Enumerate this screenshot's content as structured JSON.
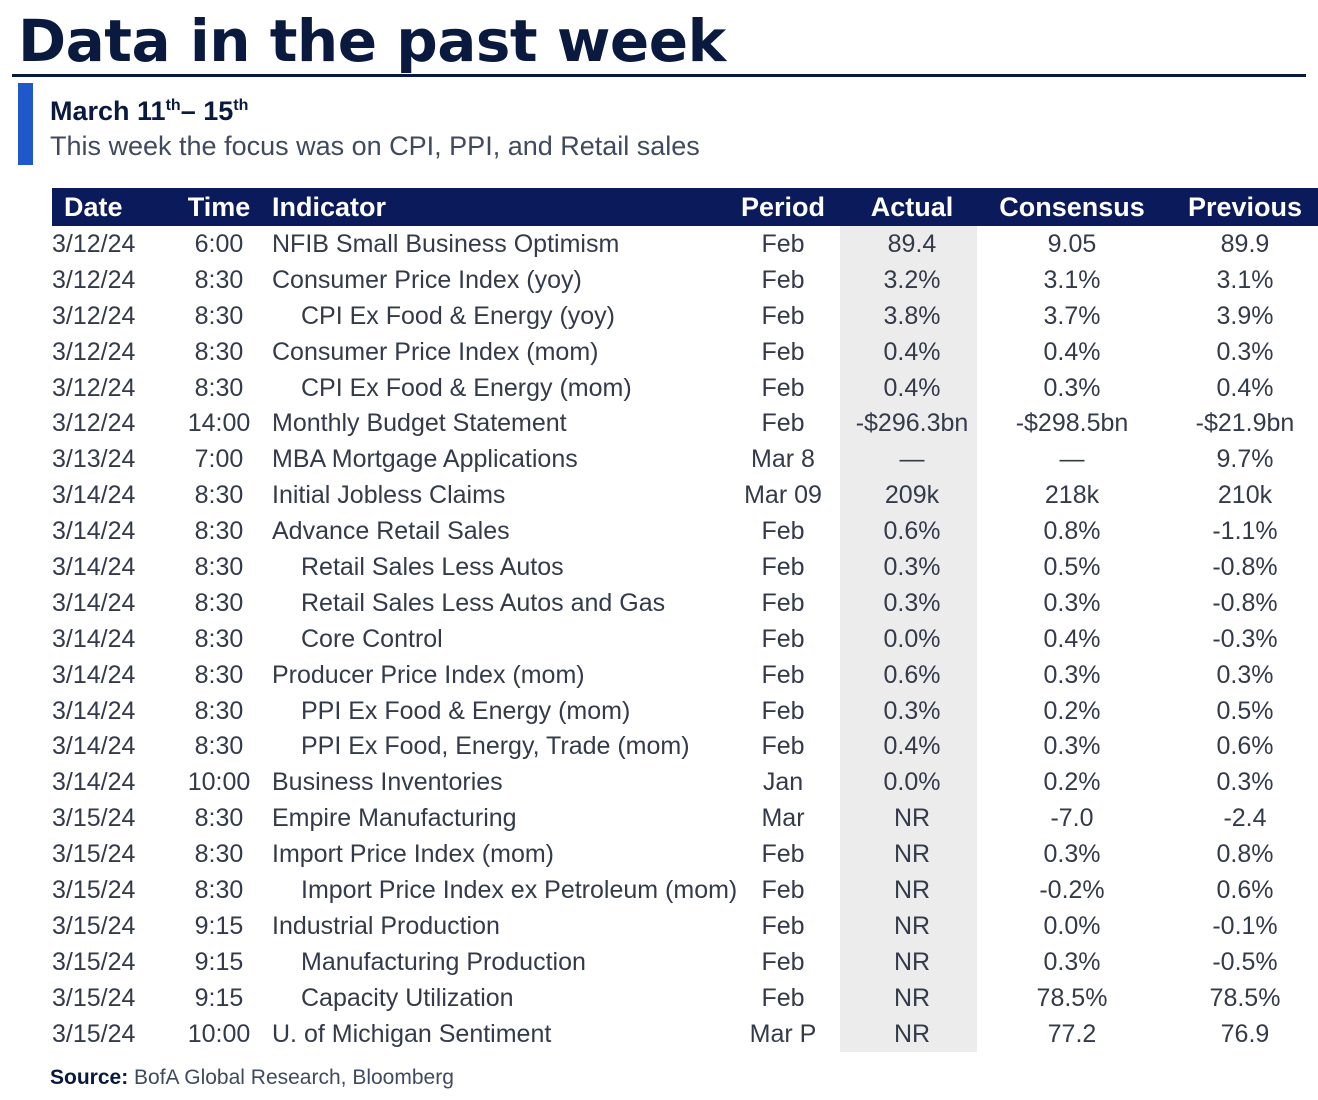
{
  "header": {
    "title": "Data in the past week",
    "week_prefix": "March 11",
    "week_sup1": "th",
    "week_mid": "– 15",
    "week_sup2": "th",
    "subtitle": "This week the focus was on CPI, PPI, and Retail sales"
  },
  "table": {
    "columns": [
      "Date",
      "Time",
      "Indicator",
      "Period",
      "Actual",
      "Consensus",
      "Previous"
    ],
    "rows": [
      {
        "date": "3/12/24",
        "time": "6:00",
        "indicator": "NFIB Small Business Optimism",
        "indent": false,
        "period": "Feb",
        "actual": "89.4",
        "consensus": "9.05",
        "previous": "89.9"
      },
      {
        "date": "3/12/24",
        "time": "8:30",
        "indicator": "Consumer Price Index (yoy)",
        "indent": false,
        "period": "Feb",
        "actual": "3.2%",
        "consensus": "3.1%",
        "previous": "3.1%"
      },
      {
        "date": "3/12/24",
        "time": "8:30",
        "indicator": "CPI Ex Food & Energy (yoy)",
        "indent": true,
        "period": "Feb",
        "actual": "3.8%",
        "consensus": "3.7%",
        "previous": "3.9%"
      },
      {
        "date": "3/12/24",
        "time": "8:30",
        "indicator": "Consumer Price Index (mom)",
        "indent": false,
        "period": "Feb",
        "actual": "0.4%",
        "consensus": "0.4%",
        "previous": "0.3%"
      },
      {
        "date": "3/12/24",
        "time": "8:30",
        "indicator": "CPI Ex Food & Energy (mom)",
        "indent": true,
        "period": "Feb",
        "actual": "0.4%",
        "consensus": "0.3%",
        "previous": "0.4%"
      },
      {
        "date": "3/12/24",
        "time": "14:00",
        "indicator": "Monthly Budget Statement",
        "indent": false,
        "period": "Feb",
        "actual": "-$296.3bn",
        "consensus": "-$298.5bn",
        "previous": "-$21.9bn"
      },
      {
        "date": "3/13/24",
        "time": "7:00",
        "indicator": "MBA Mortgage Applications",
        "indent": false,
        "period": "Mar 8",
        "actual": "—",
        "consensus": "—",
        "previous": "9.7%"
      },
      {
        "date": "3/14/24",
        "time": "8:30",
        "indicator": "Initial Jobless Claims",
        "indent": false,
        "period": "Mar 09",
        "actual": "209k",
        "consensus": "218k",
        "previous": "210k"
      },
      {
        "date": "3/14/24",
        "time": "8:30",
        "indicator": "Advance Retail Sales",
        "indent": false,
        "period": "Feb",
        "actual": "0.6%",
        "consensus": "0.8%",
        "previous": "-1.1%"
      },
      {
        "date": "3/14/24",
        "time": "8:30",
        "indicator": "Retail Sales Less Autos",
        "indent": true,
        "period": "Feb",
        "actual": "0.3%",
        "consensus": "0.5%",
        "previous": "-0.8%"
      },
      {
        "date": "3/14/24",
        "time": "8:30",
        "indicator": "Retail Sales Less Autos and Gas",
        "indent": true,
        "period": "Feb",
        "actual": "0.3%",
        "consensus": "0.3%",
        "previous": "-0.8%"
      },
      {
        "date": "3/14/24",
        "time": "8:30",
        "indicator": "Core Control",
        "indent": true,
        "period": "Feb",
        "actual": "0.0%",
        "consensus": "0.4%",
        "previous": "-0.3%"
      },
      {
        "date": "3/14/24",
        "time": "8:30",
        "indicator": "Producer Price Index (mom)",
        "indent": false,
        "period": "Feb",
        "actual": "0.6%",
        "consensus": "0.3%",
        "previous": "0.3%"
      },
      {
        "date": "3/14/24",
        "time": "8:30",
        "indicator": "PPI Ex Food & Energy (mom)",
        "indent": true,
        "period": "Feb",
        "actual": "0.3%",
        "consensus": "0.2%",
        "previous": "0.5%"
      },
      {
        "date": "3/14/24",
        "time": "8:30",
        "indicator": "PPI Ex Food, Energy, Trade (mom)",
        "indent": true,
        "period": "Feb",
        "actual": "0.4%",
        "consensus": "0.3%",
        "previous": "0.6%"
      },
      {
        "date": "3/14/24",
        "time": "10:00",
        "indicator": "Business Inventories",
        "indent": false,
        "period": "Jan",
        "actual": "0.0%",
        "consensus": "0.2%",
        "previous": "0.3%"
      },
      {
        "date": "3/15/24",
        "time": "8:30",
        "indicator": "Empire Manufacturing",
        "indent": false,
        "period": "Mar",
        "actual": "NR",
        "consensus": "-7.0",
        "previous": "-2.4"
      },
      {
        "date": "3/15/24",
        "time": "8:30",
        "indicator": "Import Price Index (mom)",
        "indent": false,
        "period": "Feb",
        "actual": "NR",
        "consensus": "0.3%",
        "previous": "0.8%"
      },
      {
        "date": "3/15/24",
        "time": "8:30",
        "indicator": "Import Price Index ex Petroleum (mom)",
        "indent": true,
        "period": "Feb",
        "actual": "NR",
        "consensus": "-0.2%",
        "previous": "0.6%"
      },
      {
        "date": "3/15/24",
        "time": "9:15",
        "indicator": "Industrial Production",
        "indent": false,
        "period": "Feb",
        "actual": "NR",
        "consensus": "0.0%",
        "previous": "-0.1%"
      },
      {
        "date": "3/15/24",
        "time": "9:15",
        "indicator": "Manufacturing Production",
        "indent": true,
        "period": "Feb",
        "actual": "NR",
        "consensus": "0.3%",
        "previous": "-0.5%"
      },
      {
        "date": "3/15/24",
        "time": "9:15",
        "indicator": "Capacity Utilization",
        "indent": true,
        "period": "Feb",
        "actual": "NR",
        "consensus": "78.5%",
        "previous": "78.5%"
      },
      {
        "date": "3/15/24",
        "time": "10:00",
        "indicator": "U. of Michigan Sentiment",
        "indent": false,
        "period": "Mar P",
        "actual": "NR",
        "consensus": "77.2",
        "previous": "76.9"
      }
    ]
  },
  "footer": {
    "source_label": "Source:",
    "source_text": "BofA Global Research, Bloomberg"
  },
  "colors": {
    "navy": "#0a1a3f",
    "header_fill": "#0a1a5a",
    "accent_blue": "#1f58c8",
    "actual_shade": "#ececec"
  }
}
